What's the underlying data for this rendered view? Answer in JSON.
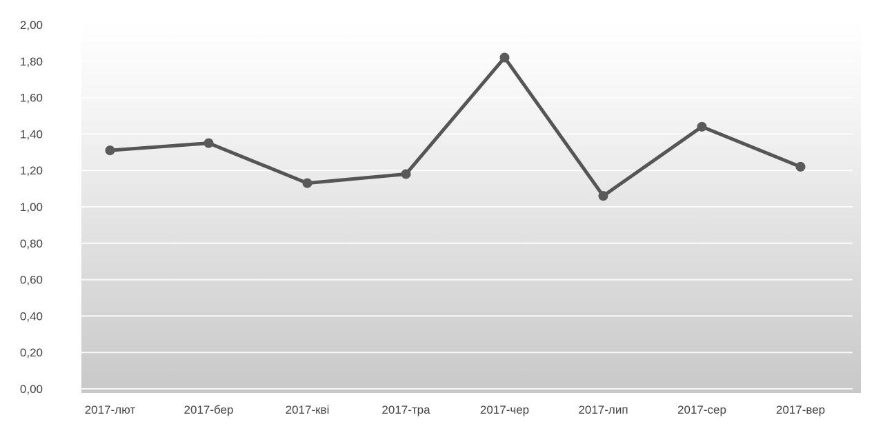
{
  "chart_data": {
    "type": "line",
    "title": "",
    "xlabel": "",
    "ylabel": "",
    "categories": [
      "2017-лют",
      "2017-бер",
      "2017-кві",
      "2017-тра",
      "2017-чер",
      "2017-лип",
      "2017-сер",
      "2017-вер"
    ],
    "series": [
      {
        "values": [
          1.31,
          1.35,
          1.13,
          1.18,
          1.82,
          1.06,
          1.44,
          1.22
        ]
      }
    ],
    "ylim": [
      0,
      2
    ],
    "yticks": [
      "0,00",
      "0,20",
      "0,40",
      "0,60",
      "0,80",
      "1,00",
      "1,20",
      "1,40",
      "1,60",
      "1,80",
      "2,00"
    ],
    "grid": true,
    "legend": "none",
    "colors": {
      "line": "#555555",
      "marker": "#5a5a5a",
      "plot_bg_top": "#ffffff",
      "plot_bg_bottom": "#c9c9c9"
    }
  }
}
